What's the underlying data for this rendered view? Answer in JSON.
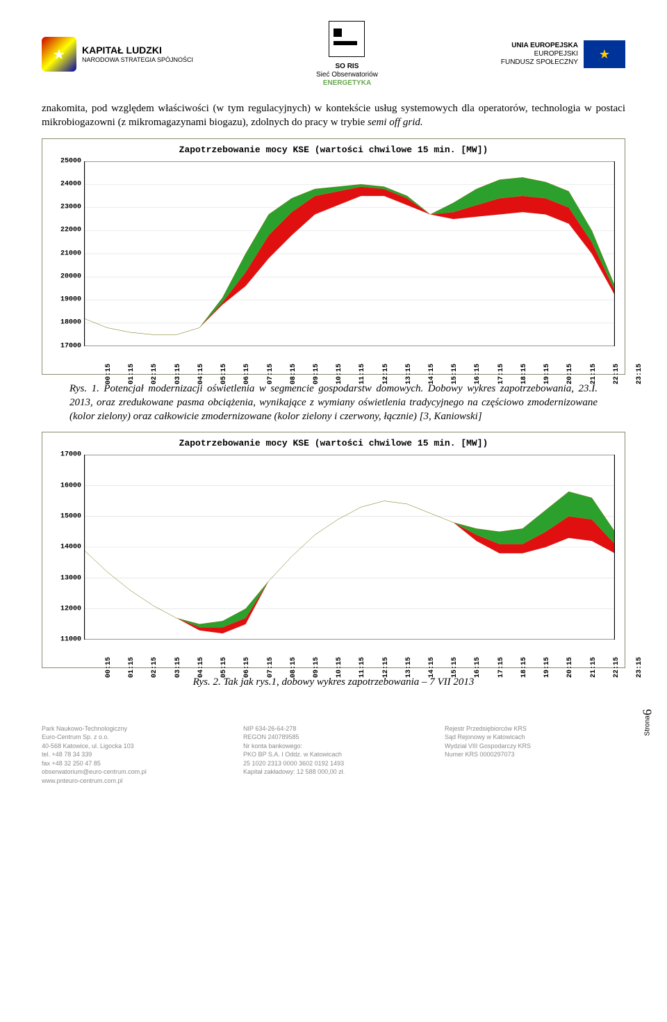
{
  "header": {
    "logo_left": {
      "title": "KAPITAŁ LUDZKI",
      "subtitle": "NARODOWA STRATEGIA SPÓJNOŚCI"
    },
    "logo_center": {
      "top": "SO RIS",
      "mid": "Sieć Obserwatoriów",
      "bottom": "ENERGETYKA",
      "bottom_color": "#6aa84f"
    },
    "logo_right": {
      "line1": "UNIA EUROPEJSKA",
      "line2": "EUROPEJSKI",
      "line3": "FUNDUSZ SPOŁECZNY"
    }
  },
  "paragraph1": "znakomita, pod względem właściwości (w tym regulacyjnych) w kontekście usług systemowych dla operatorów,  technologia w postaci mikrobiogazowni (z mikromagazynami biogazu), zdolnych do pracy w trybie ",
  "paragraph1_italic": "semi off grid.",
  "chart1": {
    "type": "area-line",
    "title": "Zapotrzebowanie mocy KSE (wartości chwilowe 15 min. [MW])",
    "title_fontfamily": "Courier New",
    "title_fontsize": 13,
    "background_color": "#ffffff",
    "border_color": "#8a8a70",
    "ylim": [
      17000,
      25000
    ],
    "yticks": [
      17000,
      18000,
      19000,
      20000,
      21000,
      22000,
      23000,
      24000,
      25000
    ],
    "xticks": [
      "00:15",
      "01:15",
      "02:15",
      "03:15",
      "04:15",
      "05:15",
      "06:15",
      "07:15",
      "08:15",
      "09:15",
      "10:15",
      "11:15",
      "12:15",
      "13:15",
      "14:15",
      "15:15",
      "16:15",
      "17:15",
      "18:15",
      "19:15",
      "20:15",
      "21:15",
      "22:15",
      "23:15"
    ],
    "line_color": "#6b6b00",
    "fill_green": "#2ca02c",
    "fill_red": "#e01010",
    "grid_color": "#e4e4e4",
    "line_width": 1.5,
    "top_line": [
      18200,
      17800,
      17600,
      17500,
      17500,
      17800,
      19100,
      21000,
      22700,
      23400,
      23800,
      23900,
      24000,
      23900,
      23500,
      22700,
      23200,
      23800,
      24200,
      24300,
      24100,
      23700,
      22000,
      19600
    ],
    "green_line": [
      18200,
      17800,
      17600,
      17500,
      17500,
      17800,
      18900,
      20200,
      21800,
      22800,
      23500,
      23700,
      23900,
      23800,
      23400,
      22700,
      22800,
      23100,
      23400,
      23500,
      23400,
      23000,
      21500,
      19400
    ],
    "red_line": [
      18200,
      17800,
      17600,
      17500,
      17500,
      17800,
      18800,
      19600,
      20800,
      21800,
      22700,
      23100,
      23500,
      23500,
      23100,
      22700,
      22500,
      22600,
      22700,
      22800,
      22700,
      22300,
      21000,
      19200
    ]
  },
  "caption1_prefix": "Rys. 1. ",
  "caption1": "Potencjał modernizacji oświetlenia w segmencie gospodarstw domowych. Dobowy wykres zapotrzebowania, 23.I. 2013, oraz zredukowane pasma obciążenia, wynikające z wymiany oświetlenia tradycyjnego na częściowo zmodernizowane (kolor zielony) oraz całkowicie zmodernizowane (kolor zielony i czerwony, łącznie) [3, Kaniowski]",
  "chart2": {
    "type": "area-line",
    "title": "Zapotrzebowanie mocy KSE (wartości chwilowe 15 min. [MW])",
    "title_fontfamily": "Courier New",
    "title_fontsize": 13,
    "background_color": "#ffffff",
    "border_color": "#8a8a70",
    "ylim": [
      11000,
      17000
    ],
    "yticks": [
      11000,
      12000,
      13000,
      14000,
      15000,
      16000,
      17000
    ],
    "xticks": [
      "00:15",
      "01:15",
      "02:15",
      "03:15",
      "04:15",
      "05:15",
      "06:15",
      "07:15",
      "08:15",
      "09:15",
      "10:15",
      "11:15",
      "12:15",
      "13:15",
      "14:15",
      "15:15",
      "16:15",
      "17:15",
      "18:15",
      "19:15",
      "20:15",
      "21:15",
      "22:15",
      "23:15"
    ],
    "line_color": "#6b6b00",
    "fill_green": "#2ca02c",
    "fill_red": "#e01010",
    "grid_color": "#e4e4e4",
    "line_width": 1.5,
    "top_line": [
      13900,
      13200,
      12600,
      12100,
      11700,
      11500,
      11600,
      12000,
      12900,
      13700,
      14400,
      14900,
      15300,
      15500,
      15400,
      15100,
      14800,
      14600,
      14500,
      14600,
      15200,
      15800,
      15600,
      14500
    ],
    "green_line": [
      13900,
      13200,
      12600,
      12100,
      11700,
      11400,
      11400,
      11700,
      12900,
      13700,
      14400,
      14900,
      15300,
      15500,
      15400,
      15100,
      14800,
      14400,
      14100,
      14100,
      14500,
      15000,
      14900,
      14100
    ],
    "red_line": [
      13900,
      13200,
      12600,
      12100,
      11700,
      11300,
      11200,
      11500,
      12900,
      13700,
      14400,
      14900,
      15300,
      15500,
      15400,
      15100,
      14800,
      14200,
      13800,
      13800,
      14000,
      14300,
      14200,
      13800
    ]
  },
  "caption2": "Rys. 2. Tak jak rys.1, dobowy wykres zapotrzebowania – 7 VII 2013",
  "page_side": {
    "label": "Strona",
    "num": "6"
  },
  "footer": {
    "col1": [
      "Park Naukowo-Technologiczny",
      "Euro-Centrum Sp. z o.o.",
      "40-568 Katowice, ul. Ligocka 103",
      "tel. +48 78 34 339",
      "fax +48 32 250 47 85",
      "obserwatorium@euro-centrum.com.pl",
      "www.pnteuro-centrum.com.pl"
    ],
    "col2": [
      "NIP 634-26-64-278",
      "REGON 240789585",
      "Nr konta bankowego:",
      "PKO BP S.A. I Oddz. w Katowicach",
      "25 1020 2313 0000 3602 0192 1493",
      "Kapitał zakładowy: 12 588 000,00 zł."
    ],
    "col3": [
      "Rejestr Przedsiębiorców KRS",
      "Sąd Rejonowy w Katowicach",
      "Wydział VIII Gospodarczy KRS",
      "Numer KRS 0000297073"
    ]
  }
}
